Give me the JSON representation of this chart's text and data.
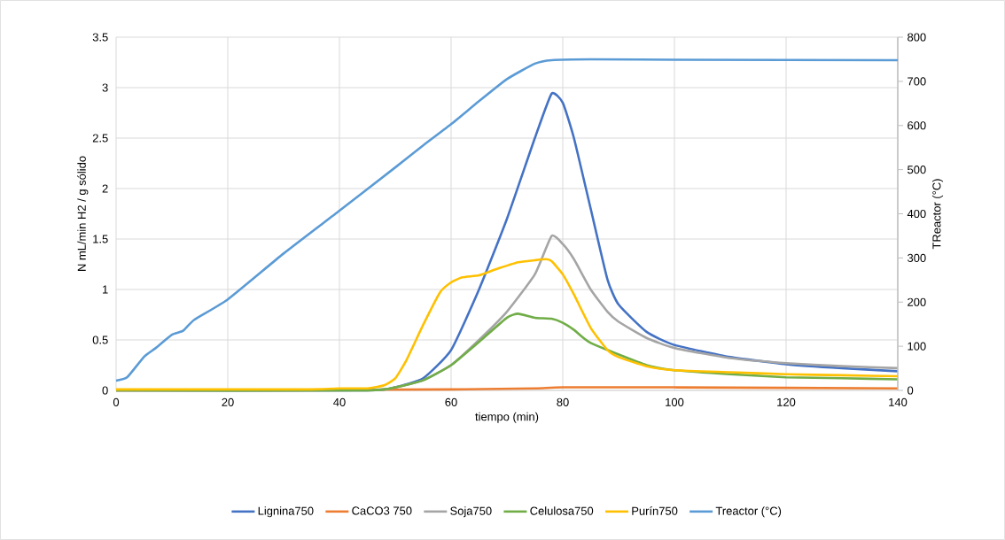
{
  "chart_data": {
    "type": "line",
    "xlabel": "tiempo (min)",
    "ylabel": "N mL/min H2 / g sólido",
    "y2label": "TReactor (°C)",
    "xlim": [
      0,
      140
    ],
    "xticks": [
      0,
      20,
      40,
      60,
      80,
      100,
      120,
      140
    ],
    "ylim": [
      0,
      3.5
    ],
    "yticks": [
      0,
      0.5,
      1,
      1.5,
      2,
      2.5,
      3,
      3.5
    ],
    "y2lim": [
      0,
      800
    ],
    "y2ticks": [
      0,
      100,
      200,
      300,
      400,
      500,
      600,
      700,
      800
    ],
    "grid": true,
    "legend": "bottom",
    "marker": "none",
    "line_style": "solid",
    "series": [
      {
        "name": "Lignina750",
        "color": "#4472c4",
        "x": [
          0,
          45,
          50,
          55,
          60,
          65,
          70,
          75,
          78,
          80,
          82,
          85,
          88,
          90,
          95,
          100,
          110,
          120,
          130,
          140
        ],
        "values": [
          0,
          0,
          0.03,
          0.12,
          0.4,
          1.0,
          1.7,
          2.5,
          2.94,
          2.85,
          2.5,
          1.8,
          1.1,
          0.85,
          0.58,
          0.45,
          0.33,
          0.26,
          0.22,
          0.19
        ]
      },
      {
        "name": "CaCO3 750",
        "color": "#ed7d31",
        "x": [
          0,
          60,
          75,
          80,
          100,
          140
        ],
        "values": [
          0,
          0.01,
          0.02,
          0.03,
          0.03,
          0.02
        ]
      },
      {
        "name": "Soja750",
        "color": "#a5a5a5",
        "x": [
          0,
          45,
          50,
          55,
          60,
          65,
          70,
          75,
          78,
          80,
          82,
          85,
          88,
          90,
          95,
          100,
          110,
          120,
          130,
          140
        ],
        "values": [
          0,
          0,
          0.03,
          0.1,
          0.25,
          0.5,
          0.78,
          1.15,
          1.53,
          1.45,
          1.3,
          1.0,
          0.78,
          0.68,
          0.52,
          0.42,
          0.32,
          0.27,
          0.24,
          0.22
        ]
      },
      {
        "name": "Celulosa750",
        "color": "#70ad47",
        "x": [
          0,
          45,
          50,
          55,
          60,
          65,
          70,
          72,
          75,
          78,
          80,
          82,
          85,
          90,
          95,
          100,
          110,
          120,
          130,
          140
        ],
        "values": [
          0,
          0,
          0.03,
          0.1,
          0.25,
          0.48,
          0.72,
          0.76,
          0.72,
          0.71,
          0.67,
          0.6,
          0.47,
          null,
          0.25,
          0.2,
          0.16,
          0.13,
          0.12,
          0.11
        ]
      },
      {
        "name": "Purín750",
        "color": "#ffc000",
        "x": [
          0,
          35,
          40,
          45,
          48,
          50,
          52,
          55,
          58,
          60,
          62,
          65,
          68,
          72,
          75,
          77,
          78,
          80,
          82,
          85,
          88,
          90,
          95,
          100,
          110,
          120,
          130,
          140
        ],
        "values": [
          0.01,
          0.01,
          0.02,
          0.02,
          0.05,
          0.12,
          0.3,
          0.65,
          0.97,
          1.07,
          1.12,
          1.14,
          1.2,
          1.27,
          1.29,
          1.3,
          1.28,
          1.15,
          0.95,
          0.62,
          0.4,
          0.33,
          0.24,
          0.2,
          0.18,
          0.16,
          0.15,
          0.14
        ]
      },
      {
        "name": "Treactor (°C)",
        "color": "#5b9bd5",
        "axis": "y2",
        "x": [
          0,
          2,
          5,
          7,
          10,
          12,
          14,
          20,
          30,
          40,
          50,
          55,
          60,
          65,
          70,
          75,
          78,
          85,
          100,
          140
        ],
        "values": [
          22,
          30,
          76,
          95,
          126,
          135,
          160,
          206,
          310,
          407,
          505,
          555,
          603,
          655,
          705,
          740,
          748,
          750,
          749,
          748
        ]
      }
    ]
  }
}
